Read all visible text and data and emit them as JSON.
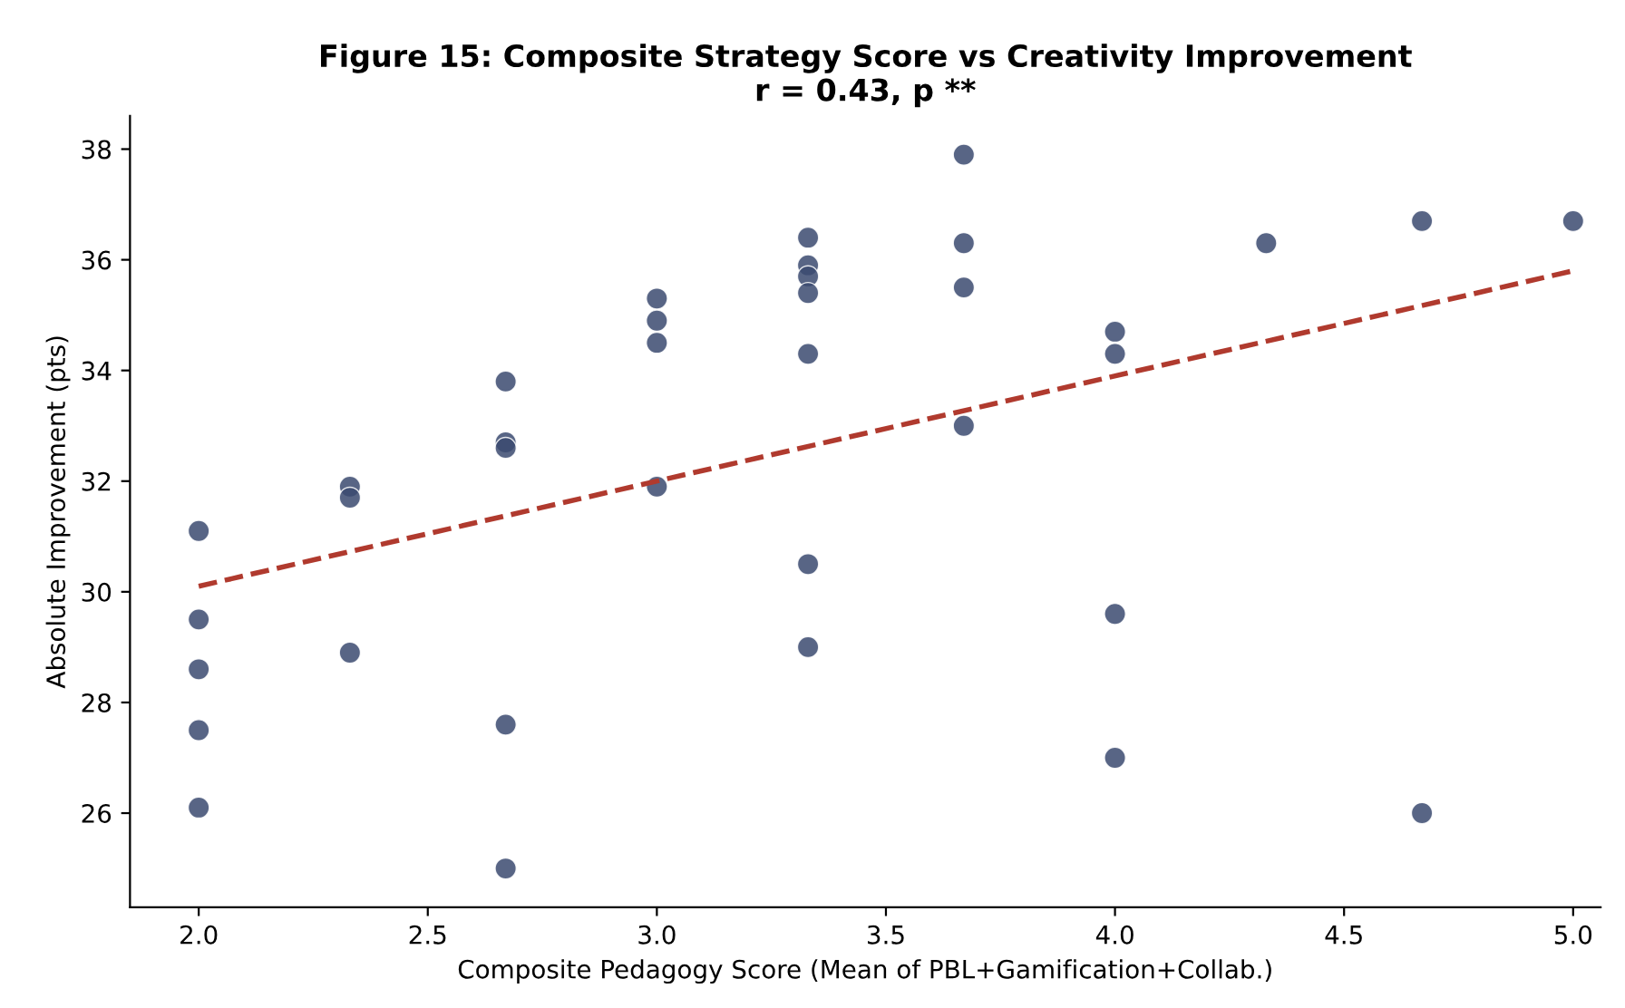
{
  "chart_data": {
    "type": "scatter",
    "title": "Figure 15: Composite Strategy Score vs Creativity Improvement\nr = 0.43, p **",
    "xlabel": "Composite Pedagogy Score (Mean of PBL+Gamification+Collab.)",
    "ylabel": "Absolute Improvement (pts)",
    "xlim": [
      1.85,
      5.06
    ],
    "ylim": [
      24.3,
      38.6
    ],
    "xticks": [
      {
        "value": 2.0,
        "label": "2.0"
      },
      {
        "value": 2.5,
        "label": "2.5"
      },
      {
        "value": 3.0,
        "label": "3.0"
      },
      {
        "value": 3.5,
        "label": "3.5"
      },
      {
        "value": 4.0,
        "label": "4.0"
      },
      {
        "value": 4.5,
        "label": "4.5"
      },
      {
        "value": 5.0,
        "label": "5.0"
      }
    ],
    "yticks": [
      26,
      28,
      30,
      32,
      34,
      36,
      38
    ],
    "grid": false,
    "legend": false,
    "marker": "circle",
    "series": [
      {
        "color": "#3b4a70",
        "x": [
          2.0,
          2.0,
          2.0,
          2.0,
          2.0,
          2.33,
          2.33,
          2.33,
          2.67,
          2.67,
          2.67,
          2.67,
          2.67,
          3.0,
          3.0,
          3.0,
          3.0,
          3.33,
          3.33,
          3.33,
          3.33,
          3.33,
          3.33,
          3.33,
          3.67,
          3.67,
          3.67,
          3.67,
          4.0,
          4.0,
          4.0,
          4.0,
          4.33,
          4.67,
          4.67,
          5.0
        ],
        "values": [
          31.1,
          29.5,
          28.6,
          27.5,
          26.1,
          31.9,
          31.7,
          28.9,
          33.8,
          32.7,
          32.6,
          27.6,
          25.0,
          35.3,
          34.9,
          34.5,
          31.9,
          36.4,
          35.9,
          35.7,
          35.4,
          34.3,
          30.5,
          29.0,
          37.9,
          36.3,
          35.5,
          33.0,
          34.7,
          34.3,
          29.6,
          27.0,
          36.3,
          36.7,
          26.0,
          36.7
        ]
      },
      {
        "type": "line",
        "color": "#b03a2e",
        "line_style": "dashed",
        "marker": "none",
        "x": [
          2.0,
          5.0
        ],
        "values": [
          30.1,
          35.8
        ]
      }
    ]
  }
}
